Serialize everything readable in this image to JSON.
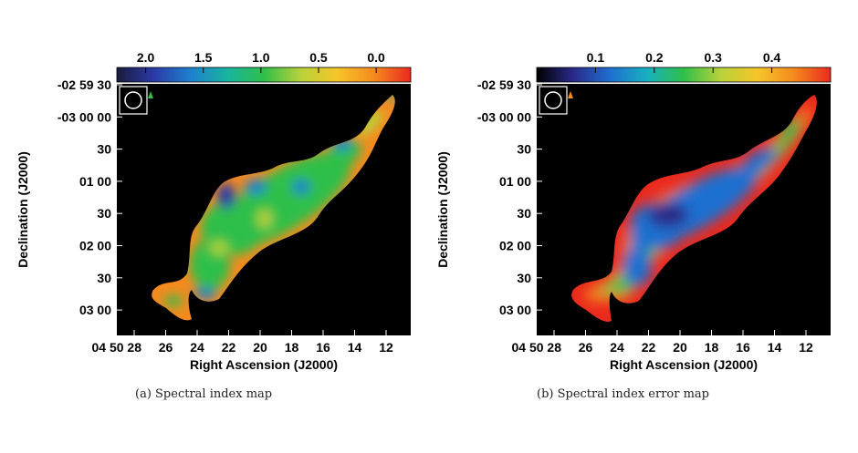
{
  "chart_data": [
    {
      "type": "heatmap",
      "caption": "(a) Spectral index map",
      "xlabel": "Right Ascension (J2000)",
      "ylabel": "Declination (J2000)",
      "x_ticks": [
        "04 50 28",
        "26",
        "24",
        "22",
        "20",
        "18",
        "16",
        "14",
        "12"
      ],
      "y_ticks": [
        "-02 59 30",
        "-03 00 00",
        "30",
        "01 00",
        "30",
        "02 00",
        "30",
        "03 00"
      ],
      "colorbar": {
        "ticks": [
          "2.0",
          "1.5",
          "1.0",
          "0.5",
          "0.0"
        ],
        "range": [
          2.25,
          -0.3
        ],
        "colors": [
          "#1b1b3a",
          "#2a3aa8",
          "#1f7fcf",
          "#18b4a0",
          "#2fbf4a",
          "#b8d23a",
          "#f5c52a",
          "#f58a1e",
          "#ea2a1e"
        ]
      },
      "background": "#000000",
      "beam_label": "beam"
    },
    {
      "type": "heatmap",
      "caption": "(b) Spectral index error map",
      "xlabel": "Right Ascension (J2000)",
      "ylabel": "Declination (J2000)",
      "x_ticks": [
        "04 50 28",
        "26",
        "24",
        "22",
        "20",
        "18",
        "16",
        "14",
        "12"
      ],
      "y_ticks": [
        "-02 59 30",
        "-03 00 00",
        "30",
        "01 00",
        "30",
        "02 00",
        "30",
        "03 00"
      ],
      "colorbar": {
        "ticks": [
          "0.1",
          "0.2",
          "0.3",
          "0.4"
        ],
        "range": [
          0.0,
          0.5
        ],
        "colors": [
          "#000000",
          "#2a2a8a",
          "#1f6fd0",
          "#18b0c0",
          "#2fbf4a",
          "#b8d23a",
          "#f5c52a",
          "#f58a1e",
          "#ea2a1e"
        ]
      },
      "background": "#000000",
      "beam_label": "beam"
    }
  ]
}
